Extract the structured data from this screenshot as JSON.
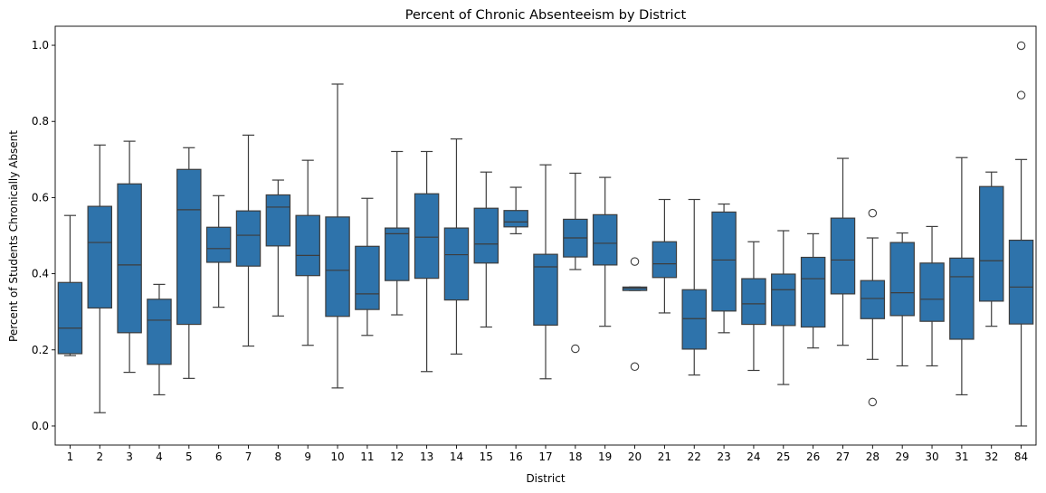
{
  "chart_data": {
    "type": "box",
    "title": "Percent of Chronic Absenteeism by District",
    "xlabel": "District",
    "ylabel": "Percent of Students Chronically Absent",
    "ylim": [
      -0.05,
      1.05
    ],
    "yticks": [
      "0.0",
      "0.2",
      "0.4",
      "0.6",
      "0.8",
      "1.0"
    ],
    "grid": false,
    "box_color": "#2e73ab",
    "categories": [
      "1",
      "2",
      "3",
      "4",
      "5",
      "6",
      "7",
      "8",
      "9",
      "10",
      "11",
      "12",
      "13",
      "14",
      "15",
      "16",
      "17",
      "18",
      "19",
      "20",
      "21",
      "22",
      "23",
      "24",
      "25",
      "26",
      "27",
      "28",
      "29",
      "30",
      "31",
      "32",
      "84"
    ],
    "boxes": [
      {
        "district": "1",
        "whisker_low": 0.185,
        "q1": 0.19,
        "median": 0.257,
        "q3": 0.377,
        "whisker_high": 0.553,
        "outliers": []
      },
      {
        "district": "2",
        "whisker_low": 0.035,
        "q1": 0.31,
        "median": 0.482,
        "q3": 0.577,
        "whisker_high": 0.738,
        "outliers": []
      },
      {
        "district": "3",
        "whisker_low": 0.141,
        "q1": 0.245,
        "median": 0.423,
        "q3": 0.636,
        "whisker_high": 0.748,
        "outliers": []
      },
      {
        "district": "4",
        "whisker_low": 0.082,
        "q1": 0.162,
        "median": 0.278,
        "q3": 0.333,
        "whisker_high": 0.372,
        "outliers": []
      },
      {
        "district": "5",
        "whisker_low": 0.125,
        "q1": 0.267,
        "median": 0.568,
        "q3": 0.674,
        "whisker_high": 0.731,
        "outliers": []
      },
      {
        "district": "6",
        "whisker_low": 0.312,
        "q1": 0.43,
        "median": 0.466,
        "q3": 0.522,
        "whisker_high": 0.605,
        "outliers": []
      },
      {
        "district": "7",
        "whisker_low": 0.21,
        "q1": 0.42,
        "median": 0.501,
        "q3": 0.565,
        "whisker_high": 0.764,
        "outliers": []
      },
      {
        "district": "8",
        "whisker_low": 0.289,
        "q1": 0.473,
        "median": 0.575,
        "q3": 0.607,
        "whisker_high": 0.646,
        "outliers": []
      },
      {
        "district": "9",
        "whisker_low": 0.212,
        "q1": 0.395,
        "median": 0.448,
        "q3": 0.553,
        "whisker_high": 0.698,
        "outliers": []
      },
      {
        "district": "10",
        "whisker_low": 0.1,
        "q1": 0.288,
        "median": 0.409,
        "q3": 0.549,
        "whisker_high": 0.898,
        "outliers": []
      },
      {
        "district": "11",
        "whisker_low": 0.238,
        "q1": 0.306,
        "median": 0.347,
        "q3": 0.472,
        "whisker_high": 0.598,
        "outliers": []
      },
      {
        "district": "12",
        "whisker_low": 0.292,
        "q1": 0.382,
        "median": 0.505,
        "q3": 0.52,
        "whisker_high": 0.721,
        "outliers": []
      },
      {
        "district": "13",
        "whisker_low": 0.143,
        "q1": 0.388,
        "median": 0.496,
        "q3": 0.61,
        "whisker_high": 0.721,
        "outliers": []
      },
      {
        "district": "14",
        "whisker_low": 0.189,
        "q1": 0.331,
        "median": 0.45,
        "q3": 0.52,
        "whisker_high": 0.754,
        "outliers": []
      },
      {
        "district": "15",
        "whisker_low": 0.26,
        "q1": 0.428,
        "median": 0.478,
        "q3": 0.572,
        "whisker_high": 0.667,
        "outliers": []
      },
      {
        "district": "16",
        "whisker_low": 0.505,
        "q1": 0.523,
        "median": 0.536,
        "q3": 0.566,
        "whisker_high": 0.627,
        "outliers": []
      },
      {
        "district": "17",
        "whisker_low": 0.124,
        "q1": 0.265,
        "median": 0.418,
        "q3": 0.451,
        "whisker_high": 0.686,
        "outliers": []
      },
      {
        "district": "18",
        "whisker_low": 0.411,
        "q1": 0.444,
        "median": 0.494,
        "q3": 0.543,
        "whisker_high": 0.664,
        "outliers": [
          0.203
        ]
      },
      {
        "district": "19",
        "whisker_low": 0.262,
        "q1": 0.423,
        "median": 0.48,
        "q3": 0.555,
        "whisker_high": 0.653,
        "outliers": []
      },
      {
        "district": "20",
        "whisker_low": 0.356,
        "q1": 0.356,
        "median": 0.362,
        "q3": 0.365,
        "whisker_high": 0.365,
        "outliers": [
          0.432,
          0.156
        ]
      },
      {
        "district": "21",
        "whisker_low": 0.297,
        "q1": 0.39,
        "median": 0.426,
        "q3": 0.484,
        "whisker_high": 0.595,
        "outliers": []
      },
      {
        "district": "22",
        "whisker_low": 0.134,
        "q1": 0.202,
        "median": 0.282,
        "q3": 0.358,
        "whisker_high": 0.595,
        "outliers": []
      },
      {
        "district": "23",
        "whisker_low": 0.245,
        "q1": 0.302,
        "median": 0.436,
        "q3": 0.562,
        "whisker_high": 0.583,
        "outliers": []
      },
      {
        "district": "24",
        "whisker_low": 0.146,
        "q1": 0.267,
        "median": 0.321,
        "q3": 0.387,
        "whisker_high": 0.484,
        "outliers": []
      },
      {
        "district": "25",
        "whisker_low": 0.109,
        "q1": 0.264,
        "median": 0.358,
        "q3": 0.399,
        "whisker_high": 0.513,
        "outliers": []
      },
      {
        "district": "26",
        "whisker_low": 0.205,
        "q1": 0.26,
        "median": 0.387,
        "q3": 0.443,
        "whisker_high": 0.505,
        "outliers": []
      },
      {
        "district": "27",
        "whisker_low": 0.212,
        "q1": 0.347,
        "median": 0.436,
        "q3": 0.546,
        "whisker_high": 0.703,
        "outliers": []
      },
      {
        "district": "28",
        "whisker_low": 0.175,
        "q1": 0.282,
        "median": 0.335,
        "q3": 0.382,
        "whisker_high": 0.494,
        "outliers": [
          0.559,
          0.063
        ]
      },
      {
        "district": "29",
        "whisker_low": 0.158,
        "q1": 0.29,
        "median": 0.35,
        "q3": 0.482,
        "whisker_high": 0.507,
        "outliers": []
      },
      {
        "district": "30",
        "whisker_low": 0.158,
        "q1": 0.275,
        "median": 0.333,
        "q3": 0.428,
        "whisker_high": 0.524,
        "outliers": []
      },
      {
        "district": "31",
        "whisker_low": 0.082,
        "q1": 0.228,
        "median": 0.392,
        "q3": 0.441,
        "whisker_high": 0.705,
        "outliers": []
      },
      {
        "district": "32",
        "whisker_low": 0.262,
        "q1": 0.328,
        "median": 0.434,
        "q3": 0.629,
        "whisker_high": 0.667,
        "outliers": []
      },
      {
        "district": "84",
        "whisker_low": 0.0,
        "q1": 0.268,
        "median": 0.365,
        "q3": 0.488,
        "whisker_high": 0.7,
        "outliers": [
          0.999,
          0.869
        ]
      }
    ]
  }
}
